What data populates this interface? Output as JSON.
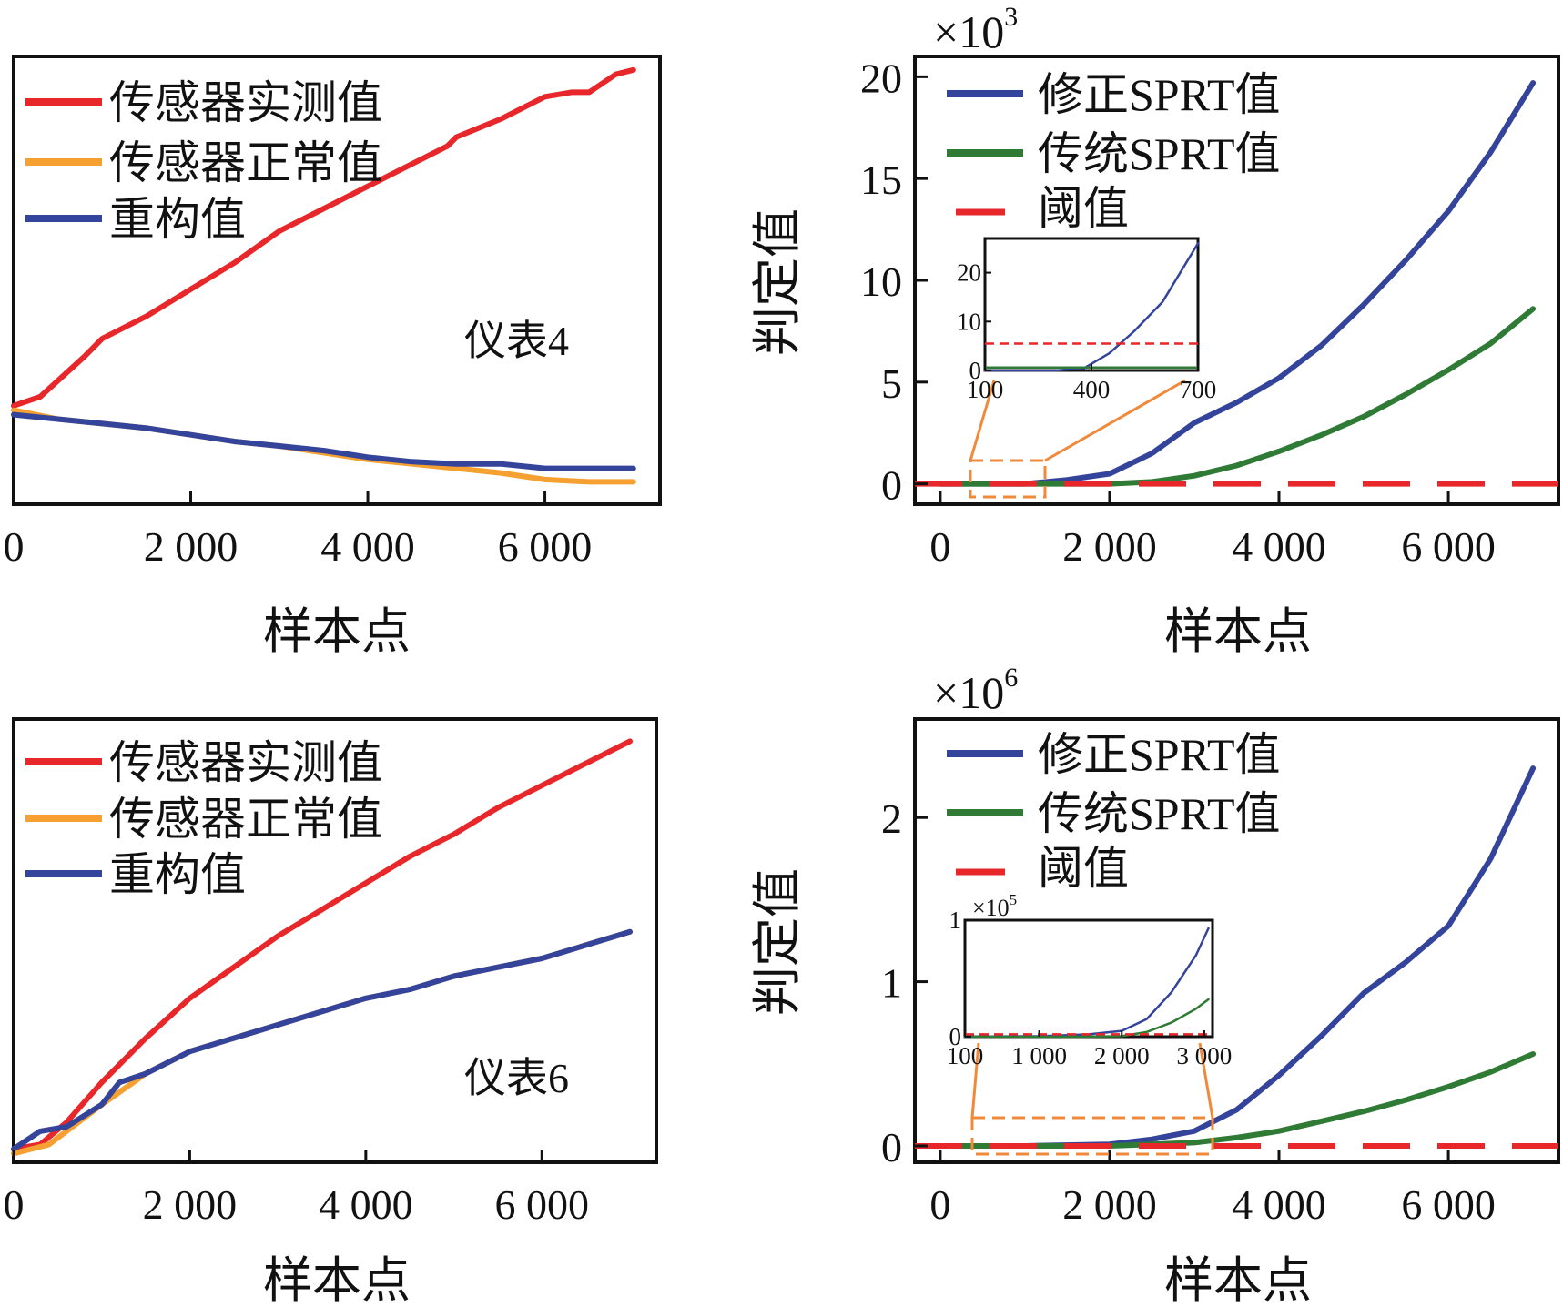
{
  "colors": {
    "red": "#e8272a",
    "orange": "#f5a031",
    "blue": "#34449a",
    "green": "#2f7b35",
    "inset_box": "#f08a3a",
    "axis": "#111111"
  },
  "chart_data": [
    {
      "id": "meter4-signals",
      "type": "line",
      "xlabel": "样本点",
      "ylabel": "",
      "xlim": [
        0,
        7300
      ],
      "ylim": [
        0,
        1
      ],
      "x_ticks": [
        0,
        2000,
        4000,
        6000
      ],
      "x_tick_labels": [
        "0",
        "2 000",
        "4 000",
        "6 000"
      ],
      "y_ticks": [],
      "annotation": "仪表4",
      "legend_position": "top-left",
      "series": [
        {
          "name": "传感器实测值",
          "color": "#e8272a",
          "x": [
            0,
            300,
            800,
            1000,
            1500,
            2000,
            2500,
            3000,
            3500,
            4000,
            4500,
            4900,
            5000,
            5500,
            6000,
            6300,
            6500,
            6800,
            7000
          ],
          "y": [
            0.22,
            0.24,
            0.33,
            0.37,
            0.42,
            0.48,
            0.54,
            0.61,
            0.66,
            0.71,
            0.76,
            0.8,
            0.82,
            0.86,
            0.91,
            0.92,
            0.92,
            0.96,
            0.97
          ]
        },
        {
          "name": "传感器正常值",
          "color": "#f5a031",
          "x": [
            0,
            500,
            1000,
            1500,
            2000,
            2500,
            3000,
            3500,
            4000,
            4500,
            5000,
            5500,
            6000,
            6500,
            7000
          ],
          "y": [
            0.21,
            0.19,
            0.18,
            0.17,
            0.155,
            0.14,
            0.13,
            0.115,
            0.1,
            0.09,
            0.08,
            0.07,
            0.055,
            0.05,
            0.05
          ]
        },
        {
          "name": "重构值",
          "color": "#34449a",
          "x": [
            0,
            500,
            1000,
            1500,
            2000,
            2500,
            3000,
            3500,
            4000,
            4500,
            5000,
            5500,
            6000,
            6500,
            7000
          ],
          "y": [
            0.2,
            0.19,
            0.18,
            0.17,
            0.155,
            0.14,
            0.13,
            0.12,
            0.105,
            0.095,
            0.09,
            0.09,
            0.08,
            0.08,
            0.08
          ]
        }
      ]
    },
    {
      "id": "meter4-sprt",
      "type": "line",
      "xlabel": "样本点",
      "ylabel": "判定值",
      "scale_label": "×10",
      "scale_exp": "3",
      "xlim": [
        -300,
        7300
      ],
      "ylim": [
        -1,
        21
      ],
      "x_ticks": [
        0,
        2000,
        4000,
        6000
      ],
      "x_tick_labels": [
        "0",
        "2 000",
        "4 000",
        "6 000"
      ],
      "y_ticks": [
        0,
        5,
        10,
        15,
        20
      ],
      "y_tick_labels": [
        "0",
        "5",
        "10",
        "15",
        "20"
      ],
      "legend_position": "top-left",
      "series": [
        {
          "name": "修正SPRT值",
          "color": "#34449a",
          "x": [
            0,
            500,
            1000,
            1500,
            2000,
            2500,
            3000,
            3500,
            4000,
            4500,
            5000,
            5500,
            6000,
            6500,
            7000
          ],
          "y": [
            0,
            0,
            0,
            0.2,
            0.5,
            1.5,
            3.0,
            4.0,
            5.2,
            6.8,
            8.8,
            11.0,
            13.4,
            16.3,
            19.7
          ]
        },
        {
          "name": "传统SPRT值",
          "color": "#2f7b35",
          "x": [
            0,
            1000,
            2000,
            2500,
            3000,
            3500,
            4000,
            4500,
            5000,
            5500,
            6000,
            6500,
            7000
          ],
          "y": [
            0,
            0,
            0,
            0.1,
            0.4,
            0.9,
            1.6,
            2.4,
            3.3,
            4.4,
            5.6,
            6.9,
            8.6
          ]
        },
        {
          "name": "阈值",
          "color": "#e8272a",
          "dashed": true,
          "x": [
            -300,
            7300
          ],
          "y": [
            0,
            0
          ]
        }
      ],
      "inset": {
        "xlim": [
          100,
          700
        ],
        "ylim": [
          0,
          27
        ],
        "x_ticks": [
          100,
          400,
          700
        ],
        "x_tick_labels": [
          "100",
          "400",
          "700"
        ],
        "y_ticks": [
          0,
          10,
          20
        ],
        "y_tick_labels": [
          "0",
          "10",
          "20"
        ],
        "series": [
          {
            "color": "#34449a",
            "x": [
              100,
              300,
              380,
              450,
              520,
              600,
              700
            ],
            "y": [
              0,
              0,
              0.5,
              3.5,
              8,
              14,
              26
            ]
          },
          {
            "color": "#2f7b35",
            "x": [
              100,
              700
            ],
            "y": [
              0.6,
              0.6
            ]
          },
          {
            "color": "#e8272a",
            "dashed": true,
            "x": [
              100,
              700
            ],
            "y": [
              5.5,
              5.5
            ]
          }
        ]
      }
    },
    {
      "id": "meter6-signals",
      "type": "line",
      "xlabel": "样本点",
      "ylabel": "",
      "xlim": [
        0,
        7300
      ],
      "ylim": [
        0,
        1
      ],
      "x_ticks": [
        0,
        2000,
        4000,
        6000
      ],
      "x_tick_labels": [
        "0",
        "2 000",
        "4 000",
        "6 000"
      ],
      "y_ticks": [],
      "annotation": "仪表6",
      "legend_position": "top-left",
      "series": [
        {
          "name": "传感器实测值",
          "color": "#e8272a",
          "x": [
            0,
            300,
            600,
            1000,
            1500,
            2000,
            2500,
            3000,
            3500,
            4000,
            4500,
            5000,
            5500,
            6000,
            6500,
            7000
          ],
          "y": [
            0.03,
            0.04,
            0.09,
            0.18,
            0.28,
            0.37,
            0.44,
            0.51,
            0.57,
            0.63,
            0.69,
            0.74,
            0.8,
            0.85,
            0.9,
            0.95
          ]
        },
        {
          "name": "传感器正常值",
          "color": "#f5a031",
          "x": [
            0,
            400,
            1000,
            1500,
            2000,
            2500,
            3000,
            3500,
            4000,
            4500,
            5000,
            5500,
            6000,
            6500,
            7000
          ],
          "y": [
            0.02,
            0.04,
            0.13,
            0.2,
            0.25,
            0.28,
            0.31,
            0.34,
            0.37,
            0.39,
            0.42,
            0.44,
            0.46,
            0.49,
            0.52
          ]
        },
        {
          "name": "重构值",
          "color": "#34449a",
          "x": [
            0,
            300,
            600,
            1000,
            1200,
            1500,
            2000,
            2500,
            3000,
            3500,
            4000,
            4500,
            5000,
            5500,
            6000,
            6500,
            7000
          ],
          "y": [
            0.03,
            0.07,
            0.08,
            0.13,
            0.18,
            0.2,
            0.25,
            0.28,
            0.31,
            0.34,
            0.37,
            0.39,
            0.42,
            0.44,
            0.46,
            0.49,
            0.52
          ]
        }
      ]
    },
    {
      "id": "meter6-sprt",
      "type": "line",
      "xlabel": "样本点",
      "ylabel": "判定值",
      "scale_label": "×10",
      "scale_exp": "6",
      "xlim": [
        -300,
        7300
      ],
      "ylim": [
        -0.1,
        2.6
      ],
      "x_ticks": [
        0,
        2000,
        4000,
        6000
      ],
      "x_tick_labels": [
        "0",
        "2 000",
        "4 000",
        "6 000"
      ],
      "y_ticks": [
        0,
        1,
        2
      ],
      "y_tick_labels": [
        "0",
        "1",
        "2"
      ],
      "legend_position": "top-left",
      "series": [
        {
          "name": "修正SPRT值",
          "color": "#34449a",
          "x": [
            0,
            1000,
            2000,
            2500,
            3000,
            3500,
            4000,
            4500,
            5000,
            5500,
            6000,
            6500,
            7000
          ],
          "y": [
            0,
            0,
            0.01,
            0.04,
            0.09,
            0.22,
            0.43,
            0.67,
            0.93,
            1.12,
            1.34,
            1.75,
            2.3
          ]
        },
        {
          "name": "传统SPRT值",
          "color": "#2f7b35",
          "x": [
            0,
            1000,
            2000,
            2500,
            3000,
            3500,
            4000,
            4500,
            5000,
            5500,
            6000,
            6500,
            7000
          ],
          "y": [
            0,
            0,
            0,
            0.01,
            0.02,
            0.05,
            0.09,
            0.15,
            0.21,
            0.28,
            0.36,
            0.45,
            0.56
          ]
        },
        {
          "name": "阈值",
          "color": "#e8272a",
          "dashed": true,
          "x": [
            -300,
            7300
          ],
          "y": [
            0,
            0
          ]
        }
      ],
      "inset": {
        "scale_label": "×10",
        "scale_exp": "5",
        "xlim": [
          100,
          3100
        ],
        "ylim": [
          0,
          1
        ],
        "x_ticks": [
          100,
          1000,
          2000,
          3000
        ],
        "x_tick_labels": [
          "100",
          "1 000",
          "2 000",
          "3 000"
        ],
        "y_ticks": [
          0,
          1
        ],
        "y_tick_labels": [
          "0",
          "1"
        ],
        "series": [
          {
            "color": "#34449a",
            "x": [
              100,
              1000,
              1600,
              2000,
              2300,
              2600,
              2900,
              3050
            ],
            "y": [
              0,
              0.005,
              0.02,
              0.05,
              0.15,
              0.38,
              0.7,
              0.93
            ]
          },
          {
            "color": "#2f7b35",
            "x": [
              100,
              1500,
              2000,
              2300,
              2600,
              2900,
              3050
            ],
            "y": [
              0,
              0,
              0.005,
              0.04,
              0.12,
              0.24,
              0.32
            ]
          },
          {
            "color": "#e8272a",
            "dashed": true,
            "x": [
              100,
              3100
            ],
            "y": [
              0.02,
              0.02
            ]
          }
        ]
      }
    }
  ]
}
